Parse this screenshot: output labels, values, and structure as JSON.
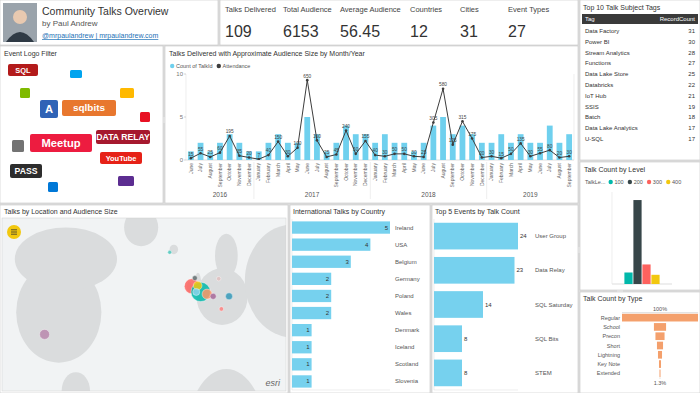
{
  "header": {
    "title": "Community Talks Overview",
    "byline": "by Paul Andrew",
    "links": "@mrpaulandrew | mrpaulandrew.com"
  },
  "kpis": [
    {
      "label": "Talks Delivered",
      "value": 109
    },
    {
      "label": "Total Audience",
      "value": 6153
    },
    {
      "label": "Average Audience",
      "value": 56.45
    },
    {
      "label": "Countries",
      "value": 12
    },
    {
      "label": "Cities",
      "value": 31
    },
    {
      "label": "Event Types",
      "value": 27
    }
  ],
  "table": {
    "title": "Top 10 Talk Subject Tags",
    "columns": [
      "Tag",
      "RecordCount"
    ],
    "rows": [
      [
        "Data Factory",
        31
      ],
      [
        "Power BI",
        30
      ],
      [
        "Stream Analytics",
        28
      ],
      [
        "Functions",
        27
      ],
      [
        "Data Lake Store",
        25
      ],
      [
        "Databricks",
        22
      ],
      [
        "IoT Hub",
        21
      ],
      [
        "SSIS",
        19
      ],
      [
        "Batch",
        18
      ],
      [
        "Data Lake Analytics",
        17
      ],
      [
        "U-SQL",
        17
      ]
    ]
  },
  "logo_filter": {
    "title": "Event Logo Filter",
    "logos": [
      {
        "label": "SQL",
        "color": "#b31b1b"
      },
      {
        "label": "A",
        "color": "#2f63b6"
      },
      {
        "label": "sqlbits",
        "color": "#e8772e"
      },
      {
        "label": "Meetup",
        "color": "#ed1c40"
      },
      {
        "label": "DATA RELAY",
        "color": "#a6192e"
      },
      {
        "label": "YouTube",
        "color": "#e62117"
      },
      {
        "label": "PASS",
        "color": "#2d2d2d"
      }
    ]
  },
  "chart_data": [
    {
      "type": "bar",
      "title": "Talks Delivered with Approximate Audience Size by Month/Year",
      "categories": [
        "June",
        "July",
        "August",
        "September",
        "October",
        "November",
        "December",
        "January",
        "February",
        "March",
        "April",
        "May",
        "June",
        "July",
        "August",
        "September",
        "October",
        "November",
        "December",
        "January",
        "February",
        "March",
        "April",
        "May",
        "June",
        "July",
        "August",
        "September",
        "October",
        "November",
        "December",
        "January",
        "February",
        "March",
        "April",
        "May",
        "June",
        "July",
        "August",
        "September"
      ],
      "groups": [
        {
          "label": "2016",
          "count": 7
        },
        {
          "label": "2017",
          "count": 12
        },
        {
          "label": "2018",
          "count": 12
        },
        {
          "label": "2019",
          "count": 9
        }
      ],
      "series": [
        {
          "name": "Count of TalkId",
          "type": "bar",
          "color": "#6fd0ee",
          "values": [
            1,
            2,
            1,
            2,
            3,
            2,
            1,
            1,
            2,
            3,
            2,
            2,
            5,
            3,
            1,
            2,
            4,
            3,
            3,
            2,
            3,
            2,
            2,
            1,
            2,
            4,
            5,
            3,
            4,
            3,
            2,
            2,
            3,
            2,
            3,
            2,
            2,
            4,
            2,
            3
          ]
        },
        {
          "name": "Attendance",
          "type": "line",
          "axis": "y2",
          "color": "#3d3d3d",
          "marker": "circle",
          "data_labels": true,
          "values": [
            15,
            55,
            25,
            60,
            195,
            35,
            20,
            7,
            40,
            150,
            30,
            100,
            650,
            160,
            25,
            45,
            240,
            50,
            155,
            40,
            30,
            50,
            50,
            30,
            25,
            305,
            580,
            125,
            315,
            175,
            20,
            30,
            15,
            50,
            135,
            30,
            55,
            80,
            20,
            30
          ]
        }
      ],
      "ylim": [
        0,
        10
      ],
      "yticks": [
        0,
        5,
        10
      ],
      "y2lim": [
        0,
        700
      ],
      "y2ticks": [],
      "legend": "top-left",
      "grid": false
    },
    {
      "type": "map",
      "title": "Talks by Location and Audience Size",
      "x": [
        -6.3,
        -0.1,
        -2.2,
        -3.2,
        4.4,
        8.7,
        19.9,
        12.6,
        -21.9,
        -4.2,
        14.5,
        -110
      ],
      "values": [
        53.3,
        51.5,
        53.5,
        51.5,
        50.8,
        50.1,
        50.1,
        55.7,
        64.1,
        55.9,
        46.1,
        38
      ],
      "sizes": [
        900,
        1500,
        300,
        200,
        400,
        150,
        200,
        80,
        60,
        100,
        80,
        400
      ],
      "colors": [
        "#fd625e",
        "#01b8aa",
        "#f2c80f",
        "#8ad4eb",
        "#fe9666",
        "#a66999",
        "#3599b8",
        "#dfbfbf",
        "#4ac5bb",
        "#5f6b6d",
        "#fb8281",
        "#b887ad"
      ],
      "xlim": [
        -140,
        60
      ],
      "ylim": [
        20,
        75
      ],
      "tick_labels": false,
      "attribution": "esri"
    },
    {
      "type": "bar",
      "orientation": "horizontal",
      "title": "International Talks by Country",
      "categories": [
        "Ireland",
        "USA",
        "Belgium",
        "Germany",
        "Poland",
        "Wales",
        "Denmark",
        "Iceland",
        "Scotland",
        "Slovenia"
      ],
      "values": [
        5,
        4,
        3,
        2,
        2,
        2,
        1,
        1,
        1,
        1
      ],
      "color": "#76d1ee",
      "xlim": [
        0,
        5
      ],
      "xticks": [],
      "data_labels": true,
      "tick_labels": "y"
    },
    {
      "type": "bar",
      "orientation": "horizontal",
      "title": "Top 5 Events by Talk Count",
      "categories": [
        "User Group",
        "Data Relay",
        "SQL Saturday",
        "SQL Bits",
        "STEM"
      ],
      "values": [
        24,
        23,
        14,
        8,
        8
      ],
      "color": "#76d1ee",
      "xlim": [
        0,
        24
      ],
      "xticks": [],
      "data_labels": true,
      "tick_labels": "y"
    },
    {
      "type": "bar",
      "title": "Talk Count by Level",
      "legend_title": "TalkLe...",
      "categories": [
        null
      ],
      "series": [
        {
          "name": "100",
          "color": "#01b8aa",
          "values": [
            10
          ]
        },
        {
          "name": "200",
          "color": "#374649",
          "values": [
            73
          ]
        },
        {
          "name": "300",
          "color": "#fd625e",
          "values": [
            17
          ]
        },
        {
          "name": "400",
          "color": "#f2c80f",
          "values": [
            8
          ]
        }
      ],
      "ylim": [
        0,
        80
      ],
      "yticks": [],
      "legend": "top-left",
      "tick_labels": false
    },
    {
      "type": "funnel",
      "title": "Talk Count by Type",
      "categories": [
        "Regular",
        "School",
        "Precon",
        "Short",
        "Lightning",
        "Key Note",
        "Extended"
      ],
      "values": [
        75,
        12,
        9,
        6,
        4,
        2,
        1
      ],
      "color": "#f4a06c",
      "percent_labels": [
        {
          "value": 100,
          "label": "100%"
        },
        {
          "value": 1.3,
          "label": "1.3%"
        }
      ]
    }
  ]
}
